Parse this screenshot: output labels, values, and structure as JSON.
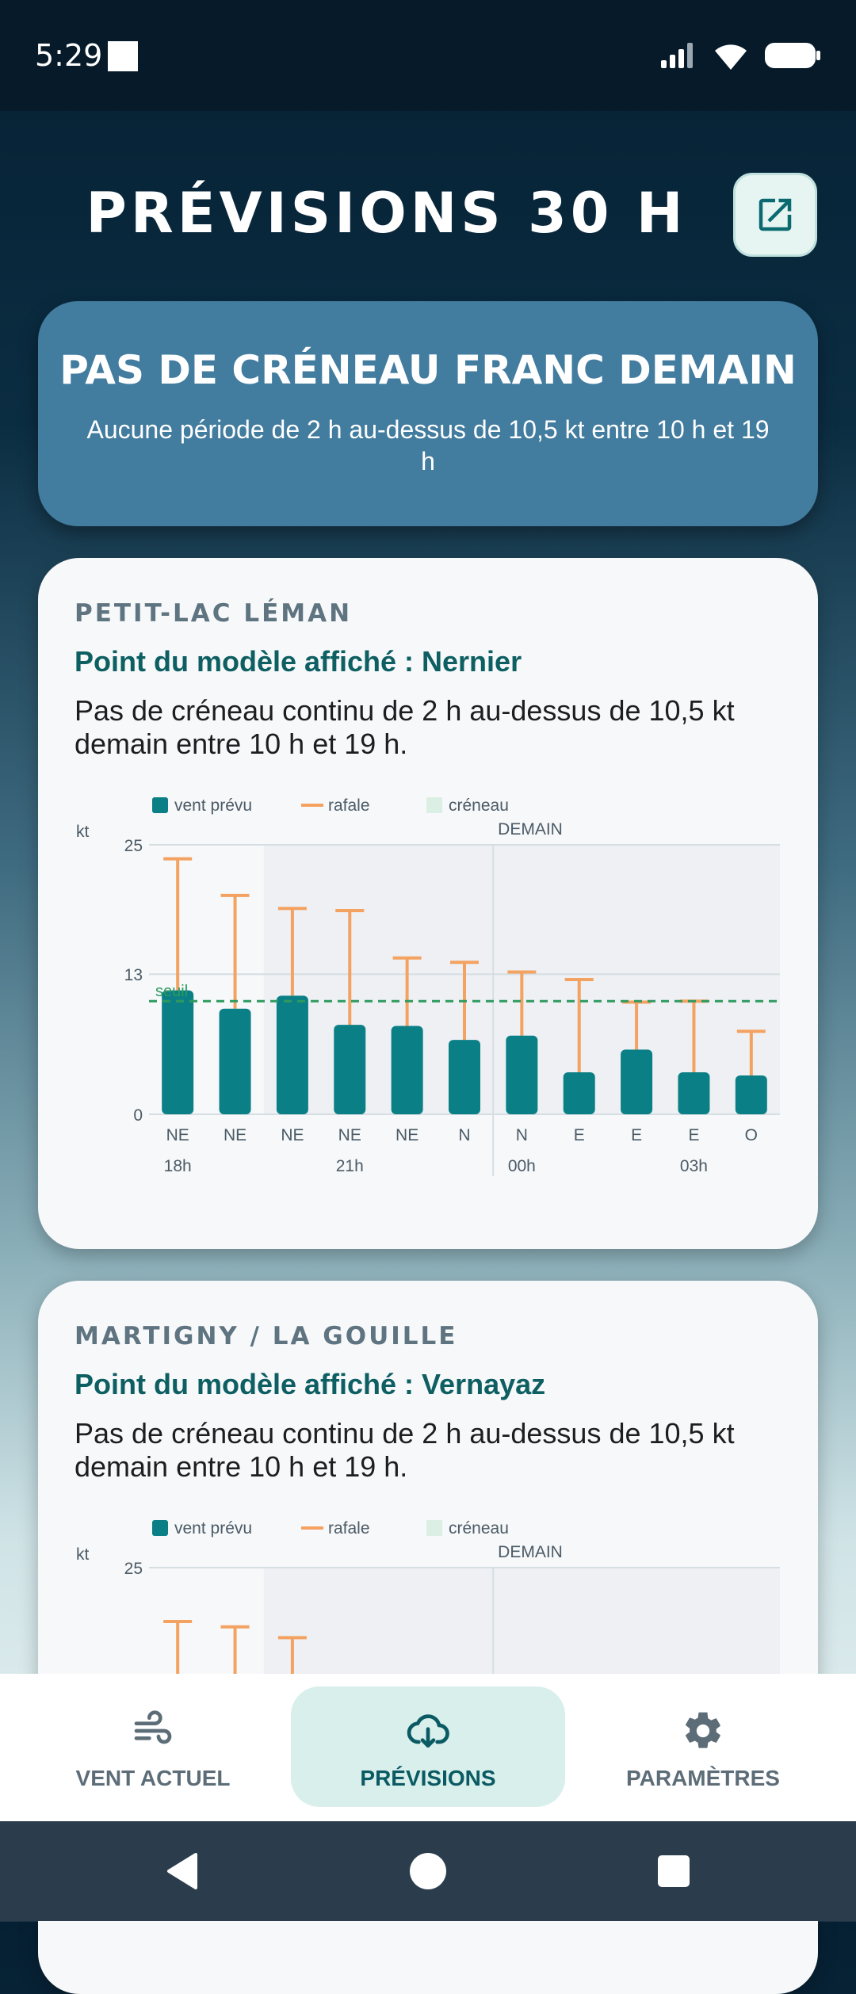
{
  "status_bar": {
    "time": "5:29"
  },
  "header": {
    "title": "PRÉVISIONS 30 H",
    "open_external_icon": "open-in-new-icon"
  },
  "banner": {
    "title": "PAS DE CRÉNEAU FRANC DEMAIN",
    "subtitle": "Aucune période de 2 h au-dessus de 10,5 kt entre 10 h et 19 h"
  },
  "legend": {
    "wind": "vent prévu",
    "gust": "rafale",
    "window": "créneau"
  },
  "colors": {
    "wind": "#0b7f86",
    "gust": "#f4a261",
    "threshold": "#2e9a5f",
    "window": "#dcefe4"
  },
  "cards": [
    {
      "location": "PETIT-LAC LÉMAN",
      "model_point": "Point du modèle affiché : Nernier",
      "message": "Pas de créneau continu de 2 h au-dessus de 10,5 kt demain entre 10 h et 19 h.",
      "chart_data": {
        "type": "bar",
        "unit_label": "kt",
        "day_label": "DEMAIN",
        "threshold_label": "seuil",
        "threshold": 10.5,
        "ylim": [
          0,
          25
        ],
        "yticks": [
          "25",
          "13",
          "0"
        ],
        "directions": [
          "NE",
          "NE",
          "NE",
          "NE",
          "NE",
          "N",
          "N",
          "E",
          "E",
          "E",
          "O"
        ],
        "time_labels": [
          "18h",
          "",
          "",
          "21h",
          "",
          "",
          "00h",
          "",
          "",
          "03h",
          ""
        ],
        "series": [
          {
            "name": "vent prévu",
            "values": [
              11.5,
              9.8,
              11,
              8.3,
              8.2,
              6.9,
              7.3,
              3.9,
              6,
              3.9,
              3.6
            ]
          },
          {
            "name": "rafale",
            "values": [
              23.7,
              20.3,
              19.1,
              18.9,
              14.5,
              14.1,
              13.2,
              12.5,
              10.4,
              10.5,
              7.7
            ]
          }
        ]
      }
    },
    {
      "location": "MARTIGNY / LA GOUILLE",
      "model_point": "Point du modèle affiché : Vernayaz",
      "message": "Pas de créneau continu de 2 h au-dessus de 10,5 kt demain entre 10 h et 19 h.",
      "chart_data": {
        "type": "bar",
        "unit_label": "kt",
        "day_label": "DEMAIN",
        "ylim": [
          0,
          25
        ],
        "yticks": [
          "25"
        ],
        "series": [
          {
            "name": "rafale",
            "values": [
              20,
              19.5,
              18.5
            ]
          }
        ]
      }
    }
  ],
  "bottom_nav": [
    {
      "label": "VENT ACTUEL",
      "icon": "wind-icon"
    },
    {
      "label": "PRÉVISIONS",
      "icon": "cloud-download-icon"
    },
    {
      "label": "PARAMÈTRES",
      "icon": "gear-icon"
    }
  ]
}
